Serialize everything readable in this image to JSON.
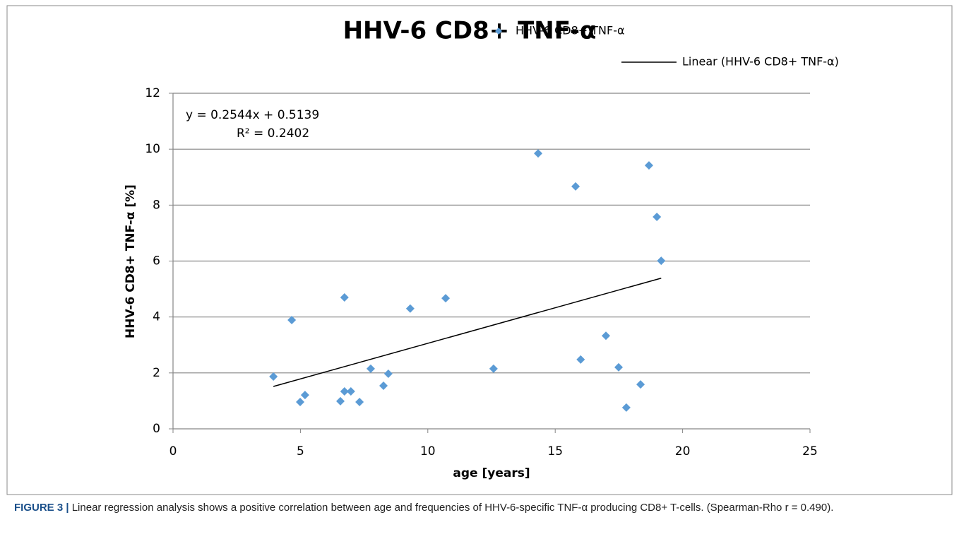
{
  "chart_data": {
    "type": "scatter",
    "title": "HHV-6 CD8+ TNF-α",
    "x_label": "age [years]",
    "y_label": "HHV-6 CD8+ TNF-α [%]",
    "series": [
      {
        "name": "HHV-6 CD8+ TNF-α",
        "color": "#5b9bd5",
        "x": [
          3.94,
          4.66,
          4.99,
          5.18,
          6.57,
          6.73,
          6.73,
          6.98,
          7.32,
          7.76,
          8.26,
          8.45,
          9.31,
          10.7,
          12.58,
          14.33,
          15.8,
          16.0,
          16.99,
          17.49,
          17.79,
          18.35,
          18.68,
          18.99,
          19.16
        ],
        "values": [
          1.87,
          3.89,
          0.96,
          1.21,
          0.99,
          4.7,
          1.34,
          1.34,
          0.96,
          2.15,
          1.54,
          1.97,
          4.3,
          4.67,
          2.15,
          9.85,
          8.67,
          2.48,
          3.33,
          2.2,
          0.76,
          1.59,
          9.42,
          7.58,
          6.01
        ]
      }
    ],
    "trendline": {
      "name": "Linear (HHV-6 CD8+ TNF-α)",
      "color": "#000000",
      "slope": 0.2544,
      "intercept": 0.5139,
      "equation": "y = 0.2544x + 0.5139",
      "r_squared": "R² = 0.2402"
    },
    "xlim": [
      0,
      25
    ],
    "xticks": [
      0,
      5,
      10,
      15,
      20,
      25
    ],
    "ylim": [
      0,
      12
    ],
    "yticks": [
      0,
      2,
      4,
      6,
      8,
      10,
      12
    ],
    "grid": true,
    "legend": "top-right"
  },
  "caption": {
    "label": "FIGURE 3 |",
    "text": " Linear regression analysis shows a positive correlation between age and frequencies of HHV-6-specific TNF-α producing CD8+ T-cells. (Spearman-Rho r = 0.490)."
  }
}
